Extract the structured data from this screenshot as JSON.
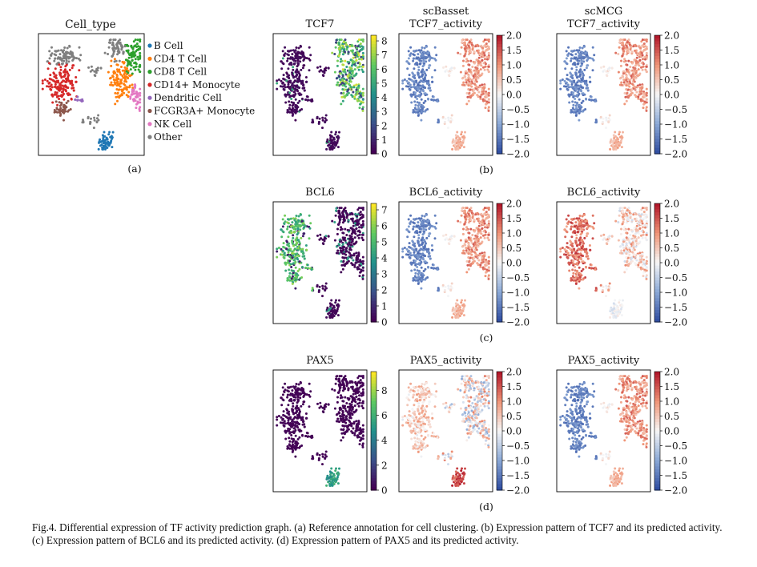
{
  "figure": {
    "panel_a": {
      "title": "Cell_type",
      "label": "(a)",
      "legend": [
        {
          "name": "B Cell",
          "color": "#1f77b4"
        },
        {
          "name": "CD4 T Cell",
          "color": "#ff7f0e"
        },
        {
          "name": "CD8 T Cell",
          "color": "#2ca02c"
        },
        {
          "name": "CD14+ Monocyte",
          "color": "#d62728"
        },
        {
          "name": "Dendritic Cell",
          "color": "#9467bd"
        },
        {
          "name": "FCGR3A+ Monocyte",
          "color": "#8c564b"
        },
        {
          "name": "NK Cell",
          "color": "#e377c2"
        },
        {
          "name": "Other",
          "color": "#7f7f7f"
        }
      ]
    },
    "panel_labels": {
      "b": "(b)",
      "c": "(c)",
      "d": "(d)"
    },
    "rows": [
      {
        "panels": [
          {
            "title_lines": [
              "TCF7"
            ],
            "type": "expr",
            "max": 8.4,
            "ticks": [
              "0",
              "1",
              "2",
              "3",
              "4",
              "5",
              "6",
              "7",
              "8"
            ],
            "gene": "TCF7",
            "pattern": "T"
          },
          {
            "title_lines": [
              "scBasset",
              "TCF7_activity"
            ],
            "type": "act",
            "ticks": [
              "2.0",
              "1.5",
              "1.0",
              "0.5",
              "0.0",
              "−0.5",
              "−1.0",
              "−1.5",
              "−2.0"
            ],
            "pattern": "T"
          },
          {
            "title_lines": [
              "scMCG",
              "TCF7_activity"
            ],
            "type": "act",
            "ticks": [
              "2.0",
              "1.5",
              "1.0",
              "0.5",
              "0.0",
              "−0.5",
              "−1.0",
              "−1.5",
              "−2.0"
            ],
            "pattern": "T"
          }
        ]
      },
      {
        "panels": [
          {
            "title_lines": [
              "BCL6"
            ],
            "type": "expr",
            "max": 7.4,
            "ticks": [
              "0",
              "1",
              "2",
              "3",
              "4",
              "5",
              "6",
              "7"
            ],
            "gene": "BCL6",
            "pattern": "M"
          },
          {
            "title_lines": [
              "BCL6_activity"
            ],
            "type": "act",
            "ticks": [
              "2.0",
              "1.5",
              "1.0",
              "0.5",
              "0.0",
              "−0.5",
              "−1.0",
              "−1.5",
              "−2.0"
            ],
            "pattern": "T"
          },
          {
            "title_lines": [
              "BCL6_activity"
            ],
            "type": "act",
            "ticks": [
              "2.0",
              "1.5",
              "1.0",
              "0.5",
              "0.0",
              "−0.5",
              "−1.0",
              "−1.5",
              "−2.0"
            ],
            "pattern": "M"
          }
        ]
      },
      {
        "panels": [
          {
            "title_lines": [
              "PAX5"
            ],
            "type": "expr",
            "max": 9.5,
            "ticks": [
              "0",
              "2",
              "4",
              "6",
              "8"
            ],
            "gene": "PAX5",
            "pattern": "B"
          },
          {
            "title_lines": [
              "PAX5_activity"
            ],
            "type": "act",
            "ticks": [
              "2.0",
              "1.5",
              "1.0",
              "0.5",
              "0.0",
              "−0.5",
              "−1.0",
              "−1.5",
              "−2.0"
            ],
            "pattern": "B"
          },
          {
            "title_lines": [
              "PAX5_activity"
            ],
            "type": "act",
            "ticks": [
              "2.0",
              "1.5",
              "1.0",
              "0.5",
              "0.0",
              "−0.5",
              "−1.0",
              "−1.5",
              "−2.0"
            ],
            "pattern": "T"
          }
        ]
      }
    ]
  },
  "caption": "Fig.4.  Differential expression of TF activity prediction graph. (a) Reference annotation for cell clustering. (b) Expression pattern of TCF7 and its predicted activity. (c) Expression pattern of BCL6 and its predicted activity. (d) Expression pattern of PAX5 and its predicted activity."
}
